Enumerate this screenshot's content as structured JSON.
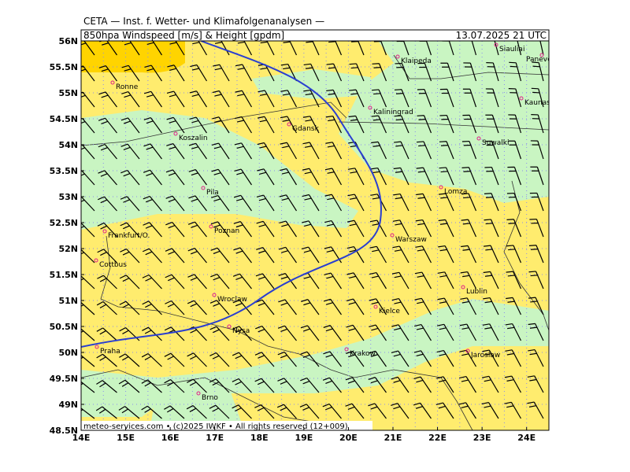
{
  "header": {
    "subtitle": "CETA — Inst. f. Wetter- und Klimafolgenanalysen —",
    "title": "850hpa Windspeed [m/s] & Height [gpdm]",
    "time": "13.07.2025 21 UTC"
  },
  "map": {
    "lat_labels": [
      "56N",
      "55.5N",
      "55N",
      "54.5N",
      "54N",
      "53.5N",
      "53N",
      "52.5N",
      "52N",
      "51.5N",
      "51N",
      "50.5N",
      "50N",
      "49.5N",
      "49N",
      "48.5N"
    ],
    "lon_labels": [
      "14E",
      "15E",
      "16E",
      "17E",
      "18E",
      "19E",
      "20E",
      "21E",
      "22E",
      "23E",
      "24E"
    ],
    "cities": [
      "Siauliai",
      "Klaipeda",
      "Panevezys",
      "Kaunas",
      "Kaliningrad",
      "Gdansk",
      "Koszalin",
      "Suwalki",
      "Ronne",
      "Pila",
      "Lomza",
      "Poznan",
      "Frankfurt/O.",
      "Warszaw",
      "Cottbus",
      "Lublin",
      "Wroclaw",
      "Kielce",
      "Nysa",
      "Praha",
      "Krakow",
      "Jaroslaw",
      "Brno"
    ],
    "footer": "meteo-services.com • (c)2025 IWKF • All rights reserved (12+009)"
  }
}
